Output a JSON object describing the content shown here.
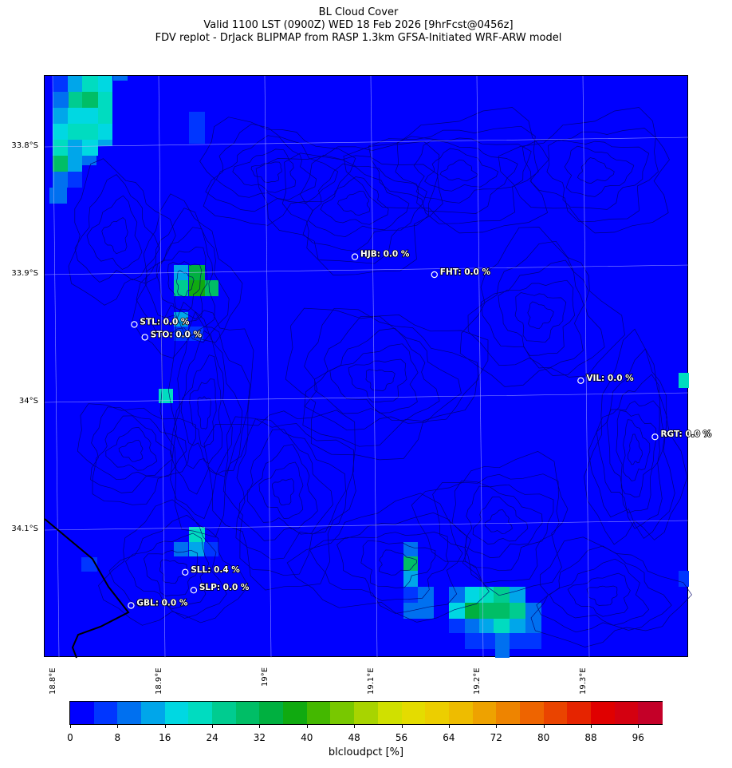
{
  "title": {
    "line1": "BL Cloud Cover",
    "line2": "Valid 1100 LST (0900Z) WED 18 Feb 2026 [9hrFcst@0456z]",
    "line3": "FDV replot - DrJack BLIPMAP from RASP 1.3km GFSA-Initiated WRF-ARW model"
  },
  "axes": {
    "lat_labels": [
      "33.8°S",
      "33.9°S",
      "34°S",
      "34.1°S"
    ],
    "lon_labels": [
      "18.8°E",
      "18.9°E",
      "19°E",
      "19.1°E",
      "19.2°E",
      "19.3°E"
    ]
  },
  "stations": [
    {
      "code": "HJB",
      "label": "HJB: 0.0 %",
      "lon": 19.085,
      "lat": -33.886,
      "value": 0.0
    },
    {
      "code": "FHT",
      "label": "FHT: 0.0 %",
      "lon": 19.16,
      "lat": -33.9,
      "value": 0.0
    },
    {
      "code": "STL",
      "label": "STL: 0.0 %",
      "lon": 18.877,
      "lat": -33.939,
      "value": 0.0
    },
    {
      "code": "STO",
      "label": "STO: 0.0 %",
      "lon": 18.887,
      "lat": -33.949,
      "value": 0.0
    },
    {
      "code": "VIL",
      "label": "VIL: 0.0 %",
      "lon": 19.298,
      "lat": -33.983,
      "value": 0.0
    },
    {
      "code": "RGT",
      "label": "RGT: 0.0 %",
      "lon": 19.368,
      "lat": -34.027,
      "value": 0.0
    },
    {
      "code": "SLL",
      "label": "SLL: 0.4 %",
      "lon": 18.925,
      "lat": -34.133,
      "value": 0.4
    },
    {
      "code": "SLP",
      "label": "SLP: 0.0 %",
      "lon": 18.933,
      "lat": -34.147,
      "value": 0.0
    },
    {
      "code": "GBL",
      "label": "GBL: 0.0 %",
      "lon": 18.874,
      "lat": -34.159,
      "value": 0.0
    }
  ],
  "colorbar": {
    "label": "blcloudpct [%]",
    "ticks": [
      "0",
      "8",
      "16",
      "24",
      "32",
      "40",
      "48",
      "56",
      "64",
      "72",
      "80",
      "88",
      "96"
    ],
    "colors": [
      "#0000ff",
      "#0036ff",
      "#0070f0",
      "#00a6ea",
      "#00d8e2",
      "#00dcc0",
      "#00cc90",
      "#00be66",
      "#00b040",
      "#10aa10",
      "#44b800",
      "#78c800",
      "#a8d400",
      "#d0e000",
      "#e4dc00",
      "#ecce00",
      "#eebc00",
      "#eea200",
      "#ee8400",
      "#ee6400",
      "#ea4400",
      "#e62400",
      "#e00000",
      "#d40010",
      "#c40028"
    ]
  }
}
